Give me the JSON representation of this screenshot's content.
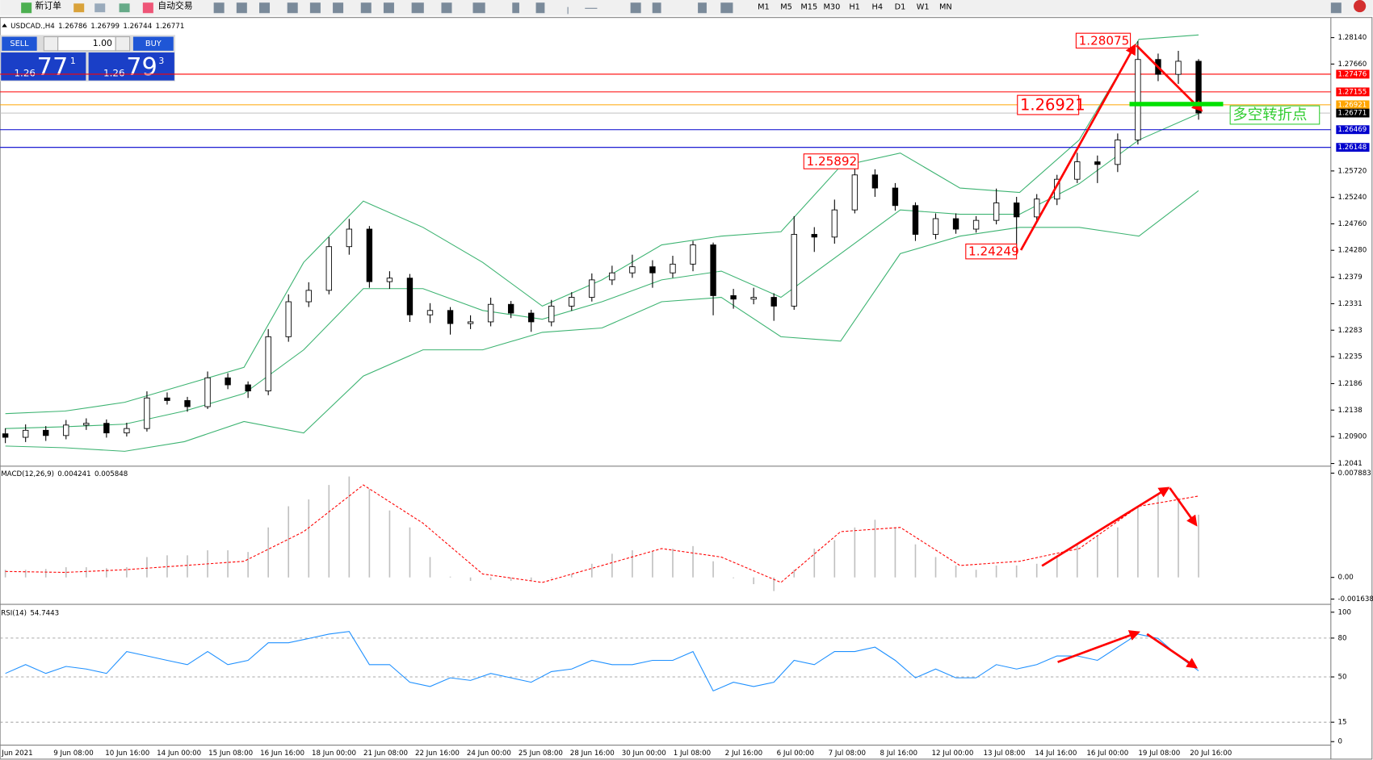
{
  "toolbar": {
    "new_order": "新订单",
    "auto_trading": "自动交易",
    "timeframes": [
      "M1",
      "M5",
      "M15",
      "M30",
      "H1",
      "H4",
      "D1",
      "W1",
      "MN"
    ]
  },
  "trade_panel": {
    "sell": "SELL",
    "buy": "BUY",
    "lots": "1.00",
    "sell_price": [
      "1.26",
      "77",
      "1"
    ],
    "buy_price": [
      "1.26",
      "79",
      "3"
    ]
  },
  "annotations": {
    "high": "1.28075",
    "mid_high": "1.25892",
    "low": "1.24249",
    "level": "1.26921",
    "turning_point": "多空转折点"
  },
  "chart_data": [
    {
      "type": "candlestick",
      "title": "USDCAD.,H4",
      "header_values": [
        1.26786,
        1.26799,
        1.26744,
        1.26771
      ],
      "open": [
        1.2095,
        1.20886,
        1.21013,
        1.20918,
        1.21108,
        1.2114,
        1.20965,
        1.21045,
        1.216,
        1.21553,
        1.21442,
        1.21965,
        1.21838,
        1.21727,
        1.22711,
        1.23346,
        1.23553,
        1.24346,
        1.24664,
        1.23711,
        1.23775,
        1.23108,
        1.23188,
        1.2295,
        1.22981,
        1.23299,
        1.2314,
        1.22981,
        1.23267,
        1.23426,
        1.23743,
        1.2387,
        1.23981,
        1.2387,
        1.24029,
        1.24378,
        1.23457,
        1.23394,
        1.23426,
        1.23267,
        1.24569,
        1.2452,
        1.25013,
        1.25648,
        1.2541,
        1.25092,
        1.24569,
        1.24854,
        1.24664,
        1.24823,
        1.2514,
        1.24886,
        1.2521,
        1.25569,
        1.25886,
        1.25838,
        1.26283,
        1.27743,
        1.27473,
        1.27711
      ],
      "high": [
        1.2105,
        1.2112,
        1.2109,
        1.212,
        1.2123,
        1.2121,
        1.2115,
        1.2172,
        1.217,
        1.2162,
        1.2208,
        1.2205,
        1.219,
        1.2285,
        1.2348,
        1.237,
        1.2452,
        1.2485,
        1.2472,
        1.239,
        1.2385,
        1.2332,
        1.2325,
        1.231,
        1.2342,
        1.2336,
        1.232,
        1.2338,
        1.2352,
        1.2386,
        1.24,
        1.242,
        1.241,
        1.2418,
        1.2445,
        1.2442,
        1.2358,
        1.236,
        1.235,
        1.249,
        1.247,
        1.252,
        1.25892,
        1.2575,
        1.255,
        1.2515,
        1.2495,
        1.2495,
        1.249,
        1.254,
        1.2525,
        1.253,
        1.2565,
        1.2605,
        1.26,
        1.264,
        1.28075,
        1.2785,
        1.279,
        1.2775
      ],
      "low": [
        1.2078,
        1.208,
        1.2082,
        1.2085,
        1.2102,
        1.2088,
        1.209,
        1.2099,
        1.2148,
        1.2135,
        1.214,
        1.2176,
        1.216,
        1.2165,
        1.2262,
        1.2325,
        1.2348,
        1.242,
        1.236,
        1.2358,
        1.2298,
        1.2296,
        1.2275,
        1.2285,
        1.229,
        1.2305,
        1.228,
        1.229,
        1.2318,
        1.2335,
        1.2365,
        1.2378,
        1.236,
        1.2378,
        1.239,
        1.231,
        1.2322,
        1.233,
        1.23,
        1.232,
        1.2425,
        1.244,
        1.2495,
        1.2525,
        1.25,
        1.2445,
        1.2448,
        1.2458,
        1.246,
        1.2475,
        1.24249,
        1.248,
        1.251,
        1.255,
        1.255,
        1.257,
        1.262,
        1.2735,
        1.273,
        1.2665
      ],
      "close": [
        1.20886,
        1.21013,
        1.20918,
        1.21108,
        1.2114,
        1.20965,
        1.21045,
        1.216,
        1.21553,
        1.21442,
        1.21965,
        1.21838,
        1.21727,
        1.22711,
        1.23346,
        1.23553,
        1.24346,
        1.24664,
        1.23711,
        1.23775,
        1.23108,
        1.23188,
        1.2295,
        1.22981,
        1.23299,
        1.2314,
        1.22981,
        1.23267,
        1.23426,
        1.23743,
        1.2387,
        1.23981,
        1.2387,
        1.24029,
        1.24378,
        1.23457,
        1.23394,
        1.23426,
        1.23267,
        1.24569,
        1.2452,
        1.25013,
        1.25648,
        1.2541,
        1.25092,
        1.24569,
        1.24854,
        1.24664,
        1.24823,
        1.2514,
        1.24886,
        1.2521,
        1.25569,
        1.25886,
        1.25838,
        1.26283,
        1.27743,
        1.27473,
        1.27711,
        1.26771
      ],
      "bands": [
        {
          "color": "#3cb371",
          "values": [
            1.21315,
            1.21362,
            1.21521,
            1.21838,
            1.22156,
            1.24061,
            1.25172,
            1.24696,
            1.24061,
            1.23267,
            1.23743,
            1.24378,
            1.24537,
            1.24616,
            1.25807,
            1.26045,
            1.2541,
            1.2533,
            1.26283,
            1.28108,
            1.28188
          ]
        },
        {
          "color": "#3cb371",
          "values": [
            1.21045,
            1.21077,
            1.21124,
            1.21362,
            1.2168,
            1.22473,
            1.23584,
            1.23584,
            1.23188,
            1.23029,
            1.23346,
            1.23743,
            1.23902,
            1.23426,
            1.24219,
            1.25013,
            1.24934,
            1.24934,
            1.25489,
            1.26283,
            1.26759
          ]
        },
        {
          "color": "#3cb371",
          "values": [
            1.20727,
            1.20696,
            1.20632,
            1.20807,
            1.21172,
            1.20965,
            1.21997,
            1.22473,
            1.22473,
            1.22791,
            1.2287,
            1.23346,
            1.23426,
            1.22711,
            1.22632,
            1.24219,
            1.24537,
            1.24696,
            1.24696,
            1.24537,
            1.25362
          ]
        }
      ],
      "hlines": [
        {
          "value": 1.27476,
          "label": "1.27476",
          "color": "#ff0000"
        },
        {
          "value": 1.27155,
          "label": "1.27155",
          "color": "#ff0000"
        },
        {
          "value": 1.26921,
          "label": "1.26921",
          "color": "#ffa500"
        },
        {
          "value": 1.26771,
          "label": "1.26771",
          "color": "#000000"
        },
        {
          "value": 1.26469,
          "label": "1.26469",
          "color": "#0000cd"
        },
        {
          "value": 1.26148,
          "label": "1.26148",
          "color": "#0000cd"
        }
      ],
      "ylim": [
        1.2041,
        1.2814
      ],
      "yticks": [
        {
          "value": 1.2814,
          "label": "1.28140"
        },
        {
          "value": 1.2766,
          "label": "1.27660"
        },
        {
          "value": 1.2572,
          "label": "1.25720"
        },
        {
          "value": 1.2524,
          "label": "1.25240"
        },
        {
          "value": 1.2476,
          "label": "1.24760"
        },
        {
          "value": 1.2428,
          "label": "1.24280"
        },
        1.2379,
        1.2331,
        1.2283,
        1.2235,
        1.2186,
        1.2138,
        {
          "value": 1.209,
          "label": "1.20900"
        },
        1.2041
      ],
      "xtick_labels": [
        "Jun 2021",
        "9 Jun 08:00",
        "10 Jun 16:00",
        "14 Jun 00:00",
        "15 Jun 08:00",
        "16 Jun 16:00",
        "18 Jun 00:00",
        "21 Jun 08:00",
        "22 Jun 16:00",
        "24 Jun 00:00",
        "25 Jun 08:00",
        "28 Jun 16:00",
        "30 Jun 00:00",
        "1 Jul 08:00",
        "2 Jul 16:00",
        "6 Jul 00:00",
        "7 Jul 08:00",
        "8 Jul 16:00",
        "12 Jul 00:00",
        "13 Jul 08:00",
        "14 Jul 16:00",
        "16 Jul 00:00",
        "19 Jul 08:00",
        "20 Jul 16:00"
      ]
    },
    {
      "type": "macd",
      "title": "MACD(12,26,9)",
      "header_values": [
        0.004241,
        0.005848
      ],
      "series": [
        {
          "color": "#c0c0c0",
          "values": [
            0.00058,
            0.00058,
            0.00064,
            0.00077,
            0.00077,
            0.0007,
            0.00077,
            0.00154,
            0.00167,
            0.00167,
            0.00205,
            0.00205,
            0.00192,
            0.00378,
            0.00538,
            0.0059,
            0.00699,
            0.00763,
            0.00667,
            0.00506,
            0.00378,
            0.00154,
            6e-05,
            -0.00026,
            -0.00019,
            -0.00026,
            -0.00026,
            -6e-05,
            0.00026,
            0.00103,
            0.00179,
            0.00205,
            0.00199,
            0.00218,
            0.00237,
            0.00122,
            -6e-05,
            -0.00051,
            -0.00103,
            0.00058,
            0.00218,
            0.00282,
            0.00378,
            0.00436,
            0.00378,
            0.0025,
            0.00154,
            0.0009,
            0.00058,
            0.0009,
            0.0009,
            0.00103,
            0.00154,
            0.0025,
            0.00314,
            0.00378,
            0.00538,
            0.00634,
            0.00602,
            0.00474
          ]
        },
        {
          "color": "#ff0000",
          "values": [
            0.00045,
            0.00038,
            0.00058,
            0.0009,
            0.00122,
            0.00346,
            0.00699,
            0.0041,
            0.00026,
            -0.00038,
            0.0009,
            0.00218,
            0.00154,
            -0.00038,
            0.00346,
            0.00378,
            0.0009,
            0.00122,
            0.00218,
            0.00538,
            0.00615
          ]
        }
      ],
      "ylim": [
        -0.001638,
        0.007883
      ],
      "yticks": [
        0.007883,
        {
          "value": 0,
          "label": "0.00"
        },
        -0.001638
      ]
    },
    {
      "type": "line",
      "title": "RSI(14)",
      "header_values": [
        54.7443
      ],
      "color": "#1e90ff",
      "values": [
        52.7,
        59.5,
        52.7,
        58.1,
        56.1,
        52.7,
        69.6,
        66.2,
        62.8,
        59.5,
        69.6,
        59.5,
        62.8,
        76.4,
        76.4,
        79.7,
        83.1,
        85.1,
        59.5,
        59.5,
        45.9,
        42.6,
        49.3,
        47.3,
        52.7,
        49.3,
        45.9,
        54.1,
        56.1,
        62.8,
        59.5,
        59.5,
        62.8,
        62.8,
        69.6,
        39.2,
        45.9,
        42.6,
        45.9,
        62.8,
        59.5,
        69.6,
        69.6,
        73.0,
        62.8,
        49.3,
        56.1,
        49.3,
        49.3,
        59.5,
        56.1,
        59.5,
        66.2,
        66.2,
        62.8,
        73.0,
        83.1,
        79.7,
        66.2,
        54.7443
      ],
      "ylim": [
        0,
        100
      ],
      "yticks": [
        100,
        80,
        50,
        15,
        0
      ],
      "grid": true
    }
  ]
}
